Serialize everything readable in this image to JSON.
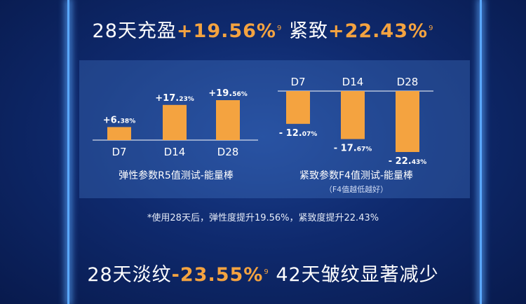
{
  "headline_top": {
    "text1": "28天充盈",
    "value1": "+19.56%",
    "sup1": "9",
    "text2": "紧致",
    "value2": "+22.43%",
    "sup2": "9"
  },
  "headline_bottom": {
    "text1": "28天淡纹",
    "value1": "-23.55%",
    "sup1": "9",
    "text2": "42天皱纹显著减少"
  },
  "footnote": "*使用28天后，弹性度提升19.56%，紧致度提升22.43%",
  "colors": {
    "bar": "#f4a340",
    "text": "#ffffff",
    "accent": "#f4a340"
  },
  "chart_data": [
    {
      "type": "bar",
      "title": "弹性参数R5值测试-能量棒",
      "categories": [
        "D7",
        "D14",
        "D28"
      ],
      "values": [
        6.38,
        17.23,
        19.56
      ],
      "labels": [
        {
          "main": "+6.",
          "small": "38%"
        },
        {
          "main": "+17.",
          "small": "23%"
        },
        {
          "main": "+19.",
          "small": "56%"
        }
      ]
    },
    {
      "type": "bar",
      "title": "紧致参数F4值测试-能量棒",
      "subtitle": "（F4值越低越好）",
      "categories": [
        "D7",
        "D14",
        "D28"
      ],
      "values": [
        -12.07,
        -17.67,
        -22.43
      ],
      "labels": [
        {
          "main": "- 12.",
          "small": "07%"
        },
        {
          "main": "- 17.",
          "small": "67%"
        },
        {
          "main": "- 22.",
          "small": "43%"
        }
      ]
    }
  ]
}
